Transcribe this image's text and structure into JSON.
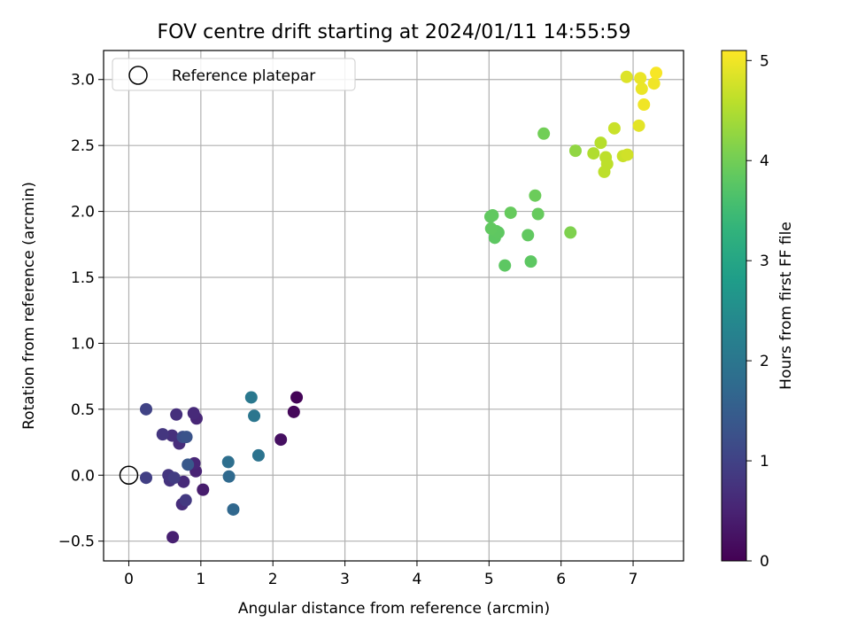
{
  "chart_data": {
    "type": "scatter",
    "title": "FOV centre drift starting at 2024/01/11 14:55:59",
    "xlabel": "Angular distance from reference (arcmin)",
    "ylabel": "Rotation from reference (arcmin)",
    "xlim": [
      -0.35,
      7.7
    ],
    "ylim": [
      -0.65,
      3.22
    ],
    "xticks": [
      0,
      1,
      2,
      3,
      4,
      5,
      6,
      7
    ],
    "yticks": [
      -0.5,
      0.0,
      0.5,
      1.0,
      1.5,
      2.0,
      2.5,
      3.0
    ],
    "xtick_labels": [
      "0",
      "1",
      "2",
      "3",
      "4",
      "5",
      "6",
      "7"
    ],
    "ytick_labels": [
      "−0.5",
      "0.0",
      "0.5",
      "1.0",
      "1.5",
      "2.0",
      "2.5",
      "3.0"
    ],
    "grid": true,
    "legend": {
      "position": "top-left",
      "entries": [
        "Reference platepar"
      ]
    },
    "reference_point": {
      "x": 0.0,
      "y": 0.0
    },
    "colorbar": {
      "label": "Hours from first FF file",
      "colormap": "viridis",
      "range": [
        0,
        5.1
      ],
      "ticks": [
        0,
        1,
        2,
        3,
        4,
        5
      ],
      "tick_labels": [
        "0",
        "1",
        "2",
        "3",
        "4",
        "5"
      ]
    },
    "points": [
      {
        "x": 2.33,
        "y": 0.59,
        "c": 0.05
      },
      {
        "x": 2.29,
        "y": 0.48,
        "c": 0.1
      },
      {
        "x": 2.11,
        "y": 0.27,
        "c": 0.2
      },
      {
        "x": 1.03,
        "y": -0.11,
        "c": 0.4
      },
      {
        "x": 0.61,
        "y": -0.47,
        "c": 0.45
      },
      {
        "x": 0.93,
        "y": 0.03,
        "c": 0.5
      },
      {
        "x": 0.91,
        "y": 0.09,
        "c": 0.55
      },
      {
        "x": 0.94,
        "y": 0.43,
        "c": 0.55
      },
      {
        "x": 0.9,
        "y": 0.47,
        "c": 0.6
      },
      {
        "x": 0.76,
        "y": -0.05,
        "c": 0.6
      },
      {
        "x": 0.74,
        "y": -0.22,
        "c": 0.65
      },
      {
        "x": 0.7,
        "y": 0.24,
        "c": 0.65
      },
      {
        "x": 0.66,
        "y": 0.46,
        "c": 0.7
      },
      {
        "x": 0.6,
        "y": 0.3,
        "c": 0.7
      },
      {
        "x": 0.57,
        "y": -0.04,
        "c": 0.75
      },
      {
        "x": 0.55,
        "y": 0.0,
        "c": 0.8
      },
      {
        "x": 0.47,
        "y": 0.31,
        "c": 0.8
      },
      {
        "x": 0.79,
        "y": -0.19,
        "c": 0.85
      },
      {
        "x": 0.63,
        "y": -0.02,
        "c": 0.9
      },
      {
        "x": 0.24,
        "y": -0.02,
        "c": 0.95
      },
      {
        "x": 0.24,
        "y": 0.5,
        "c": 1.0
      },
      {
        "x": 0.75,
        "y": 0.29,
        "c": 1.2
      },
      {
        "x": 0.8,
        "y": 0.29,
        "c": 1.3
      },
      {
        "x": 0.82,
        "y": 0.08,
        "c": 1.4
      },
      {
        "x": 1.45,
        "y": -0.26,
        "c": 1.7
      },
      {
        "x": 1.39,
        "y": -0.01,
        "c": 1.75
      },
      {
        "x": 1.38,
        "y": 0.1,
        "c": 1.85
      },
      {
        "x": 1.8,
        "y": 0.15,
        "c": 1.95
      },
      {
        "x": 1.74,
        "y": 0.45,
        "c": 2.0
      },
      {
        "x": 1.7,
        "y": 0.59,
        "c": 2.05
      },
      {
        "x": 5.22,
        "y": 1.59,
        "c": 3.8
      },
      {
        "x": 5.58,
        "y": 1.62,
        "c": 3.8
      },
      {
        "x": 5.08,
        "y": 1.8,
        "c": 3.8
      },
      {
        "x": 5.13,
        "y": 1.84,
        "c": 3.82
      },
      {
        "x": 5.1,
        "y": 1.85,
        "c": 3.82
      },
      {
        "x": 5.03,
        "y": 1.87,
        "c": 3.85
      },
      {
        "x": 5.54,
        "y": 1.82,
        "c": 3.85
      },
      {
        "x": 5.02,
        "y": 1.96,
        "c": 3.85
      },
      {
        "x": 5.05,
        "y": 1.97,
        "c": 3.85
      },
      {
        "x": 5.3,
        "y": 1.99,
        "c": 3.9
      },
      {
        "x": 5.68,
        "y": 1.98,
        "c": 3.9
      },
      {
        "x": 5.64,
        "y": 2.12,
        "c": 3.95
      },
      {
        "x": 5.76,
        "y": 2.59,
        "c": 4.0
      },
      {
        "x": 6.13,
        "y": 1.84,
        "c": 4.1
      },
      {
        "x": 6.2,
        "y": 2.46,
        "c": 4.25
      },
      {
        "x": 6.45,
        "y": 2.44,
        "c": 4.5
      },
      {
        "x": 6.55,
        "y": 2.52,
        "c": 4.55
      },
      {
        "x": 6.62,
        "y": 2.41,
        "c": 4.6
      },
      {
        "x": 6.64,
        "y": 2.36,
        "c": 4.6
      },
      {
        "x": 6.6,
        "y": 2.3,
        "c": 4.6
      },
      {
        "x": 6.74,
        "y": 2.63,
        "c": 4.7
      },
      {
        "x": 6.86,
        "y": 2.42,
        "c": 4.7
      },
      {
        "x": 6.92,
        "y": 2.43,
        "c": 4.75
      },
      {
        "x": 6.91,
        "y": 3.02,
        "c": 4.85
      },
      {
        "x": 7.08,
        "y": 2.65,
        "c": 4.9
      },
      {
        "x": 7.1,
        "y": 3.01,
        "c": 4.95
      },
      {
        "x": 7.12,
        "y": 2.93,
        "c": 4.95
      },
      {
        "x": 7.15,
        "y": 2.81,
        "c": 5.0
      },
      {
        "x": 7.29,
        "y": 2.97,
        "c": 5.0
      },
      {
        "x": 7.32,
        "y": 3.05,
        "c": 5.05
      }
    ]
  }
}
